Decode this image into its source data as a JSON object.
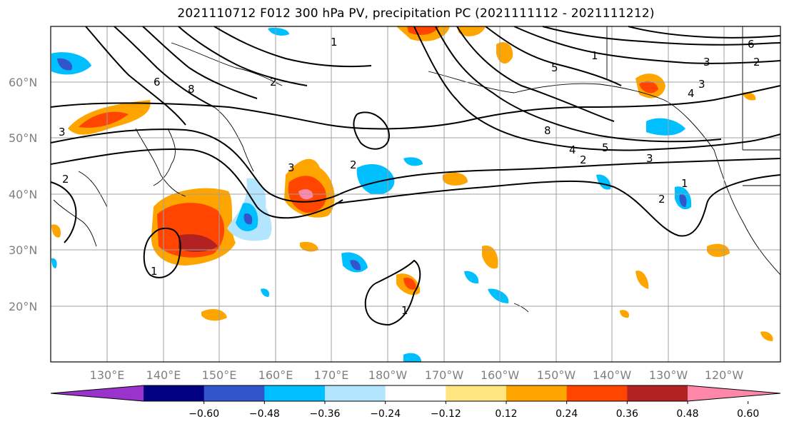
{
  "title": "2021110712 F012 300 hPa PV, precipitation PC (2021111112 - 2021111212)",
  "map": {
    "lat_labels": [
      "60°N",
      "50°N",
      "40°N",
      "30°N",
      "20°N"
    ],
    "lon_labels": [
      "130°E",
      "140°E",
      "150°E",
      "160°E",
      "170°E",
      "180°W",
      "170°W",
      "160°W",
      "150°W",
      "140°W",
      "130°W",
      "120°W"
    ],
    "pv_contour_labels": [
      "1",
      "2",
      "3",
      "4",
      "5",
      "6",
      "8"
    ]
  },
  "colorbar": {
    "tick_labels": [
      "−0.60",
      "−0.48",
      "−0.36",
      "−0.24",
      "−0.12",
      "0.12",
      "0.24",
      "0.36",
      "0.48",
      "0.60"
    ],
    "colors": [
      "#9933cc",
      "#000080",
      "#3355cc",
      "#00bfff",
      "#b3e5ff",
      "#ffffff",
      "#ffe680",
      "#ffa500",
      "#ff4500",
      "#b22222",
      "#ff88aa"
    ]
  }
}
